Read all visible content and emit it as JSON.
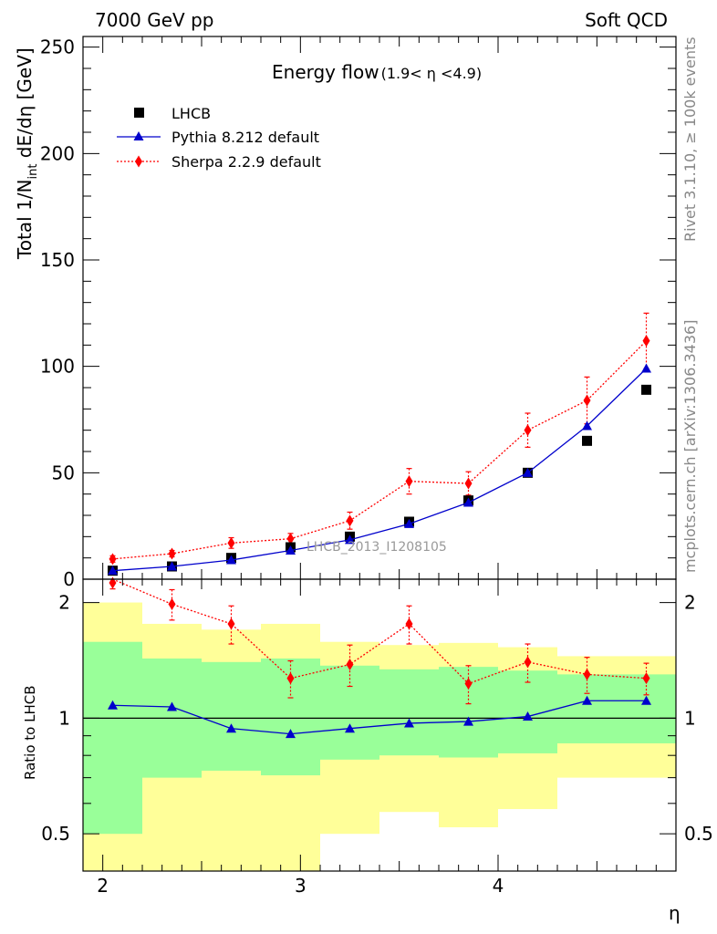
{
  "header": {
    "left": "7000 GeV pp",
    "right": "Soft QCD"
  },
  "side": {
    "rivet": "Rivet 3.1.10, ≥ 100k events",
    "mcplots": "mcplots.cern.ch [arXiv:1306.3436]"
  },
  "watermark": "LHCB_2013_I1208105",
  "colors": {
    "data": "#000000",
    "pythia": "#0000cc",
    "sherpa": "#ff0000",
    "band_inner": "#99ff99",
    "band_outer": "#ffff99"
  },
  "chart_data": [
    {
      "type": "scatter",
      "title": "Energy flow",
      "title_sub": "(1.9< η <4.9)",
      "xlabel": "",
      "ylabel": "Total 1/N",
      "ylabel_sub": "int",
      "ylabel_tail": " dE/dη [GeV]",
      "xlim": [
        1.9,
        4.9
      ],
      "ylim": [
        0,
        255
      ],
      "yticks": [
        0,
        50,
        100,
        150,
        200,
        250
      ],
      "ytick_labels": [
        "0",
        "50",
        "100",
        "150",
        "200",
        "250"
      ],
      "x": [
        2.05,
        2.35,
        2.65,
        2.95,
        3.25,
        3.55,
        3.85,
        4.15,
        4.45,
        4.75
      ],
      "legend_position": "top-left",
      "series": [
        {
          "name": "LHCB",
          "style": "marker-square",
          "values": [
            4,
            6,
            10,
            15,
            20,
            27,
            37,
            50,
            65,
            89
          ]
        },
        {
          "name": "Pythia 8.212 default",
          "style": "line-triangle",
          "values": [
            4,
            6,
            9,
            13.5,
            18.5,
            26,
            36,
            50,
            72,
            99
          ],
          "errors": [
            0.3,
            0.3,
            0.4,
            0.5,
            0.6,
            0.8,
            1,
            1,
            1.5,
            2
          ]
        },
        {
          "name": "Sherpa 2.2.9 default",
          "style": "dotted-diamond",
          "values": [
            9.5,
            12,
            17,
            19,
            27.5,
            46,
            45,
            70,
            84,
            112
          ],
          "errors": [
            1.5,
            1.5,
            2.5,
            2.5,
            4,
            6,
            5.5,
            8,
            11,
            13
          ]
        }
      ]
    },
    {
      "type": "line",
      "title": "",
      "xlabel": "η",
      "ylabel": "Ratio to LHCB",
      "xlim": [
        1.9,
        4.9
      ],
      "ylim": [
        0.4,
        2.3
      ],
      "yscale": "log",
      "yticks": [
        0.5,
        1,
        2
      ],
      "ytick_labels": [
        "0.5",
        "1",
        "2"
      ],
      "xticks": [
        2,
        3,
        4
      ],
      "xtick_labels": [
        "2",
        "3",
        "4"
      ],
      "x": [
        2.05,
        2.35,
        2.65,
        2.95,
        3.25,
        3.55,
        3.85,
        4.15,
        4.45,
        4.75
      ],
      "reference": 1,
      "bands": {
        "edges": [
          1.9,
          2.2,
          2.5,
          2.8,
          3.1,
          3.4,
          3.7,
          4.0,
          4.3,
          4.6,
          4.9
        ],
        "inner_low": [
          0.5,
          0.7,
          0.73,
          0.71,
          0.78,
          0.8,
          0.79,
          0.81,
          0.86,
          0.86
        ],
        "inner_high": [
          1.58,
          1.43,
          1.4,
          1.43,
          1.37,
          1.34,
          1.36,
          1.33,
          1.3,
          1.3
        ],
        "outer_low": [
          0.3,
          0.3,
          0.3,
          0.3,
          0.5,
          0.57,
          0.52,
          0.58,
          0.7,
          0.7
        ],
        "outer_high": [
          2.0,
          1.76,
          1.7,
          1.76,
          1.58,
          1.55,
          1.57,
          1.53,
          1.45,
          1.45
        ]
      },
      "series": [
        {
          "name": "Pythia 8.212 default",
          "values": [
            1.08,
            1.07,
            0.94,
            0.91,
            0.94,
            0.97,
            0.98,
            1.01,
            1.11,
            1.11
          ],
          "errors": [
            0.015,
            0.015,
            0.015,
            0.01,
            0.01,
            0.01,
            0.01,
            0.01,
            0.015,
            0.015
          ]
        },
        {
          "name": "Sherpa 2.2.9 default",
          "values": [
            2.3,
            1.98,
            1.76,
            1.27,
            1.38,
            1.76,
            1.23,
            1.4,
            1.3,
            1.27
          ],
          "errors": [
            0.13,
            0.18,
            0.2,
            0.14,
            0.17,
            0.2,
            0.14,
            0.16,
            0.14,
            0.12
          ]
        }
      ]
    }
  ]
}
